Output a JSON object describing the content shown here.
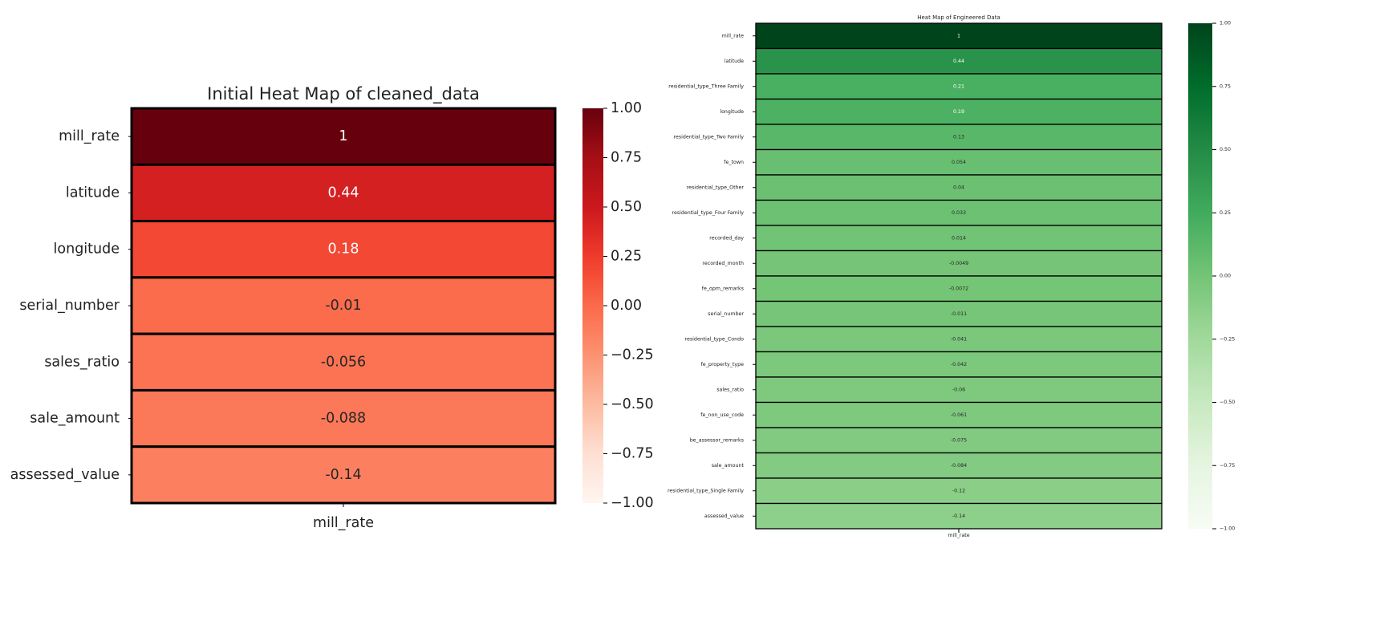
{
  "chart_data": [
    {
      "type": "heatmap",
      "title": "Initial Heat Map of cleaned_data",
      "rows": [
        "mill_rate",
        "latitude",
        "longitude",
        "serial_number",
        "sales_ratio",
        "sale_amount",
        "assessed_value"
      ],
      "columns": [
        "mill_rate"
      ],
      "values": [
        1,
        0.44,
        0.18,
        -0.01,
        -0.056,
        -0.088,
        -0.14
      ],
      "value_labels": [
        "1",
        "0.44",
        "0.18",
        "-0.01",
        "-0.056",
        "-0.088",
        "-0.14"
      ],
      "colormap": "Reds",
      "vmin": -1.0,
      "vmax": 1.0,
      "colorbar_ticks": [
        "1.00",
        "0.75",
        "0.50",
        "0.25",
        "0.00",
        "−0.25",
        "−0.50",
        "−0.75",
        "−1.00"
      ]
    },
    {
      "type": "heatmap",
      "title": "Heat Map of Engineered Data",
      "rows": [
        "mill_rate",
        "latitude",
        "residential_type_Three Family",
        "longitude",
        "residential_type_Two Family",
        "fe_town",
        "residential_type_Other",
        "residential_type_Four Family",
        "recorded_day",
        "recorded_month",
        "fe_opm_remarks",
        "serial_number",
        "residential_type_Condo",
        "fe_property_type",
        "sales_ratio",
        "fe_non_use_code",
        "be_assessor_remarks",
        "sale_amount",
        "residential_type_Single Family",
        "assessed_value"
      ],
      "columns": [
        "mill_rate"
      ],
      "values": [
        1,
        0.44,
        0.21,
        0.19,
        0.13,
        0.054,
        0.04,
        0.033,
        0.014,
        -0.0049,
        -0.0072,
        -0.011,
        -0.041,
        -0.042,
        -0.06,
        -0.061,
        -0.075,
        -0.084,
        -0.12,
        -0.14
      ],
      "value_labels": [
        "1",
        "0.44",
        "0.21",
        "0.19",
        "0.13",
        "0.054",
        "0.04",
        "0.033",
        "0.014",
        "-0.0049",
        "-0.0072",
        "-0.011",
        "-0.041",
        "-0.042",
        "-0.06",
        "-0.061",
        "-0.075",
        "-0.084",
        "-0.12",
        "-0.14"
      ],
      "colormap": "Greens",
      "vmin": -1.0,
      "vmax": 1.0,
      "colorbar_ticks": [
        "1.00",
        "0.75",
        "0.50",
        "0.25",
        "0.00",
        "−0.25",
        "−0.50",
        "−0.75",
        "−1.00"
      ]
    }
  ]
}
